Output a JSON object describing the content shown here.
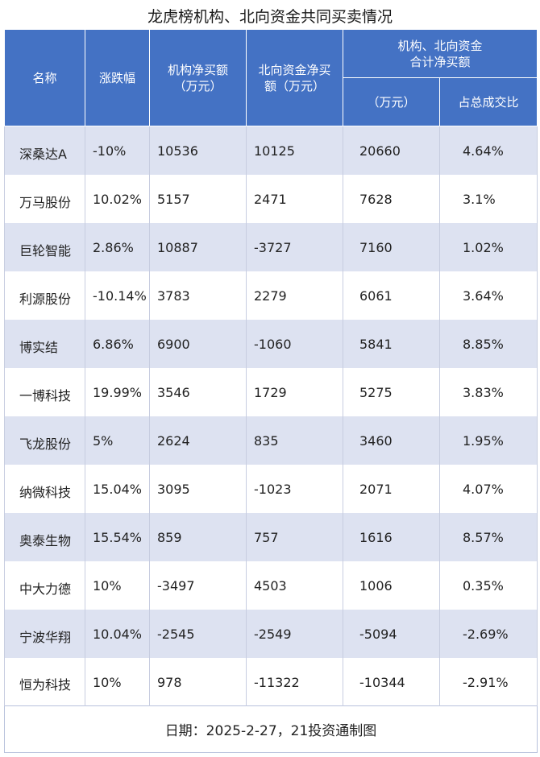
{
  "title": "龙虎榜机构、北向资金共同买卖情况",
  "headers": {
    "name": "名称",
    "change": "涨跌幅",
    "inst": "机构净买额\n（万元）",
    "north": "北向资金净买\n额（万元）",
    "combined_group": "机构、北向资金\n合计净买额",
    "combined_unit": "（万元）",
    "share": "占总成交比"
  },
  "chart_data": {
    "type": "table",
    "title": "龙虎榜机构、北向资金共同买卖情况",
    "columns": [
      "名称",
      "涨跌幅",
      "机构净买额（万元）",
      "北向资金净买额（万元）",
      "机构、北向资金合计净买额（万元）",
      "占总成交比"
    ],
    "rows": [
      [
        "深桑达A",
        "-10%",
        "10536",
        "10125",
        "20660",
        "4.64%"
      ],
      [
        "万马股份",
        "10.02%",
        "5157",
        "2471",
        "7628",
        "3.1%"
      ],
      [
        "巨轮智能",
        "2.86%",
        "10887",
        "-3727",
        "7160",
        "1.02%"
      ],
      [
        "利源股份",
        "-10.14%",
        "3783",
        "2279",
        "6061",
        "3.64%"
      ],
      [
        "博实结",
        "6.86%",
        "6900",
        "-1060",
        "5841",
        "8.85%"
      ],
      [
        "一博科技",
        "19.99%",
        "3546",
        "1729",
        "5275",
        "3.83%"
      ],
      [
        "飞龙股份",
        "5%",
        "2624",
        "835",
        "3460",
        "1.95%"
      ],
      [
        "纳微科技",
        "15.04%",
        "3095",
        "-1023",
        "2071",
        "4.07%"
      ],
      [
        "奥泰生物",
        "15.54%",
        "859",
        "757",
        "1616",
        "8.57%"
      ],
      [
        "中大力德",
        "10%",
        "-3497",
        "4503",
        "1006",
        "0.35%"
      ],
      [
        "宁波华翔",
        "10.04%",
        "-2545",
        "-2549",
        "-5094",
        "-2.69%"
      ],
      [
        "恒为科技",
        "10%",
        "978",
        "-11322",
        "-10344",
        "-2.91%"
      ]
    ]
  },
  "footer": "日期：2025-2-27，21投资通制图",
  "colors": {
    "header_bg": "#4472c4",
    "row_alt": "#dde2f1"
  }
}
